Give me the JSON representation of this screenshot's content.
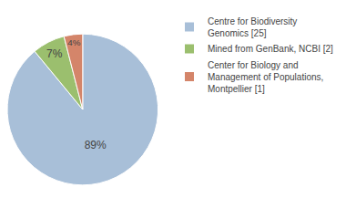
{
  "chart_data": {
    "type": "pie",
    "categories": [
      "Centre for Biodiversity\nGenomics [25]",
      "Mined from GenBank, NCBI [2]",
      "Center for Biology and\nManagement of Populations,\nMontpellier [1]"
    ],
    "values": [
      89,
      7,
      4
    ],
    "value_labels": [
      "89%",
      "7%",
      "4%"
    ],
    "colors": [
      "#a8bfd8",
      "#9bbf6e",
      "#d4856a"
    ],
    "data_labels": true,
    "legend": "upper right"
  }
}
